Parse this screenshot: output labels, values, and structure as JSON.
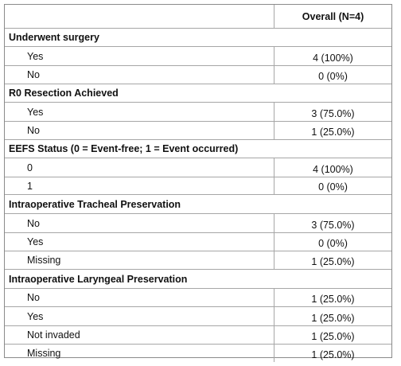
{
  "table": {
    "column_header": "Overall (N=4)",
    "sections": [
      {
        "title": "Underwent surgery",
        "rows": [
          {
            "label": "Yes",
            "value": "4 (100%)"
          },
          {
            "label": "No",
            "value": "0 (0%)"
          }
        ]
      },
      {
        "title": "R0 Resection Achieved",
        "rows": [
          {
            "label": "Yes",
            "value": "3 (75.0%)"
          },
          {
            "label": "No",
            "value": "1 (25.0%)"
          }
        ]
      },
      {
        "title": "EEFS Status (0 = Event-free; 1 = Event occurred)",
        "rows": [
          {
            "label": "0",
            "value": "4 (100%)"
          },
          {
            "label": "1",
            "value": "0  (0%)"
          }
        ]
      },
      {
        "title": "Intraoperative Tracheal Preservation",
        "rows": [
          {
            "label": "No",
            "value": "3 (75.0%)"
          },
          {
            "label": "Yes",
            "value": "0 (0%)"
          },
          {
            "label": "Missing",
            "value": "1 (25.0%)"
          }
        ]
      },
      {
        "title": "Intraoperative Laryngeal Preservation",
        "rows": [
          {
            "label": "No",
            "value": "1 (25.0%)"
          },
          {
            "label": "Yes",
            "value": "1 (25.0%)"
          },
          {
            "label": "Not invaded",
            "value": "1 (25.0%)"
          },
          {
            "label": "Missing",
            "value": "1 (25.0%)"
          }
        ]
      }
    ]
  }
}
